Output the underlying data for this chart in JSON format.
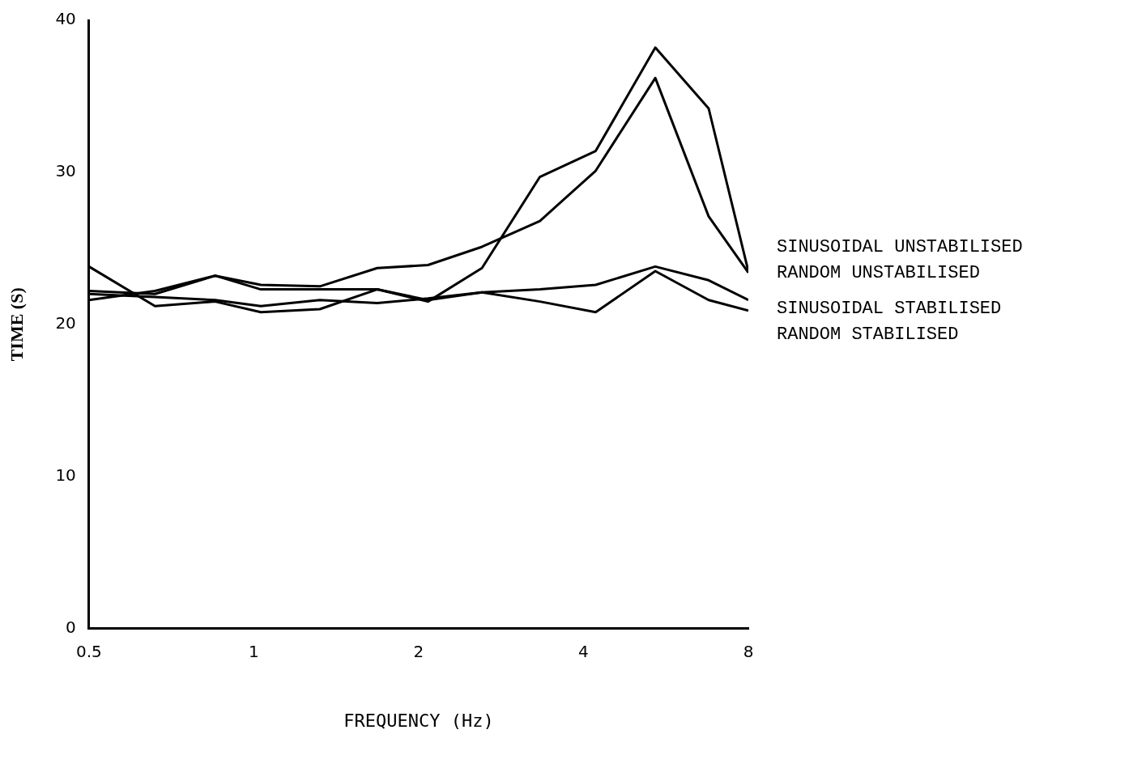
{
  "chart_data": {
    "type": "line",
    "xlabel": "FREQUENCY (Hz)",
    "ylabel": "TIME (S)",
    "x": [
      0.5,
      0.66,
      0.85,
      1.03,
      1.32,
      1.68,
      2.08,
      2.61,
      3.33,
      4.21,
      5.41,
      6.77,
      8
    ],
    "series": [
      {
        "name": "SINUSOIDAL UNSTABILISED",
        "color": "#000000",
        "values": [
          22.2,
          22.0,
          23.2,
          22.3,
          22.3,
          22.3,
          21.5,
          23.7,
          29.7,
          31.4,
          38.2,
          34.2,
          23.5
        ]
      },
      {
        "name": "RANDOM UNSTABILISED",
        "color": "#000000",
        "values": [
          21.6,
          22.2,
          23.2,
          22.6,
          22.5,
          23.7,
          23.9,
          25.1,
          26.8,
          30.1,
          36.2,
          27.1,
          23.4
        ]
      },
      {
        "name": "SINUSOIDAL STABILISED",
        "color": "#000000",
        "values": [
          23.8,
          21.2,
          21.5,
          20.8,
          21.0,
          22.3,
          21.6,
          22.1,
          22.3,
          22.6,
          23.8,
          22.9,
          21.6
        ]
      },
      {
        "name": "RANDOM STABILISED",
        "color": "#000000",
        "values": [
          22.0,
          21.8,
          21.6,
          21.2,
          21.6,
          21.4,
          21.7,
          22.1,
          21.5,
          20.8,
          23.5,
          21.6,
          20.9
        ]
      }
    ],
    "log": "x",
    "xlim": [
      0.5,
      8
    ],
    "xticks": [
      0.5,
      1,
      2,
      4,
      8
    ],
    "ylim": [
      0,
      40
    ],
    "yticks": [
      0,
      10,
      20,
      30,
      40
    ],
    "grid": false,
    "marker": "none",
    "line_style": "solid",
    "legend": "right"
  }
}
